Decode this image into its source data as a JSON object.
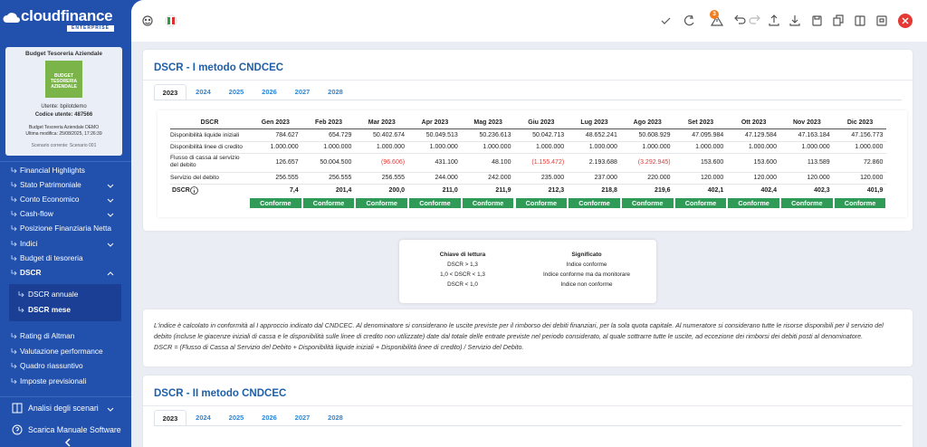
{
  "sidebar": {
    "logo": "cloudfinance",
    "logo_sub": "ENTERPRISE",
    "card": {
      "title": "Budget Tesoreria Aziendale",
      "image_text": "BUDGET TESORERIA AZIENDALE",
      "user": "Utente: bpilotdemo",
      "code": "Codice utente: 487566",
      "budget": "Budget Tesoreria Aziendale DEMO",
      "modified": "Ultima modifica: 25/08/2025, 17:26:39",
      "scenario": "Scenario corrente: Scenario 001"
    },
    "menu": [
      {
        "label": "Financial Highlights",
        "expandable": false
      },
      {
        "label": "Stato Patrimoniale",
        "expandable": true
      },
      {
        "label": "Conto Economico",
        "expandable": true
      },
      {
        "label": "Cash-flow",
        "expandable": true
      },
      {
        "label": "Posizione Finanziaria Netta",
        "expandable": false
      },
      {
        "label": "Indici",
        "expandable": true
      },
      {
        "label": "Budget di tesoreria",
        "expandable": false
      },
      {
        "label": "DSCR",
        "expandable": true,
        "expanded": true
      }
    ],
    "submenu": [
      {
        "label": "DSCR annuale",
        "active": false
      },
      {
        "label": "DSCR mese",
        "active": true
      }
    ],
    "menu_more": [
      {
        "label": "Rating di Altman"
      },
      {
        "label": "Valutazione performance"
      },
      {
        "label": "Quadro riassuntivo"
      },
      {
        "label": "Imposte previsionali"
      }
    ],
    "bottom": [
      {
        "label": "Analisi degli scenari",
        "expandable": true
      },
      {
        "label": "Scarica Manuale Software",
        "expandable": false
      }
    ]
  },
  "toolbar": {
    "notifications": "3"
  },
  "section1": {
    "title": "DSCR - I metodo CNDCEC",
    "tabs": [
      "2023",
      "2024",
      "2025",
      "2026",
      "2027",
      "2028"
    ],
    "active_tab": 0,
    "table": {
      "header": [
        "DSCR",
        "Gen 2023",
        "Feb 2023",
        "Mar 2023",
        "Apr 2023",
        "Mag 2023",
        "Giu 2023",
        "Lug 2023",
        "Ago 2023",
        "Set 2023",
        "Ott 2023",
        "Nov 2023",
        "Dic 2023"
      ],
      "rows": [
        {
          "label": "Disponibilità liquide iniziali",
          "values": [
            "784.627",
            "654.729",
            "50.402.674",
            "50.049.513",
            "50.236.613",
            "50.042.713",
            "48.652.241",
            "50.608.929",
            "47.095.984",
            "47.129.584",
            "47.163.184",
            "47.156.773"
          ]
        },
        {
          "label": "Disponibilità linee di credito",
          "values": [
            "1.000.000",
            "1.000.000",
            "1.000.000",
            "1.000.000",
            "1.000.000",
            "1.000.000",
            "1.000.000",
            "1.000.000",
            "1.000.000",
            "1.000.000",
            "1.000.000",
            "1.000.000"
          ]
        },
        {
          "label": "Flusso di cassa al servizio del debito",
          "values": [
            "126.657",
            "50.004.500",
            "(96.606)",
            "431.100",
            "48.100",
            "(1.155.472)",
            "2.193.688",
            "(3.292.945)",
            "153.600",
            "153.600",
            "113.589",
            "72.860"
          ]
        },
        {
          "label": "Servizio del debito",
          "values": [
            "256.555",
            "256.555",
            "256.555",
            "244.000",
            "242.000",
            "235.000",
            "237.000",
            "220.000",
            "120.000",
            "120.000",
            "120.000",
            "120.000"
          ]
        }
      ],
      "dscr": {
        "label": "DSCR",
        "values": [
          "7,4",
          "201,4",
          "200,0",
          "211,0",
          "211,9",
          "212,3",
          "218,8",
          "219,6",
          "402,1",
          "402,4",
          "402,3",
          "401,9"
        ]
      },
      "status": [
        "Conforme",
        "Conforme",
        "Conforme",
        "Conforme",
        "Conforme",
        "Conforme",
        "Conforme",
        "Conforme",
        "Conforme",
        "Conforme",
        "Conforme",
        "Conforme"
      ]
    }
  },
  "legend": {
    "header": [
      "Chiave di lettura",
      "Significato"
    ],
    "rows": [
      [
        "DSCR > 1,3",
        "Indice conforme"
      ],
      [
        "1,0 < DSCR < 1,3",
        "Indice conforme ma da monitorare"
      ],
      [
        "DSCR < 1,0",
        "Indice non conforme"
      ]
    ]
  },
  "note": {
    "text": "L'indice è calcolato in conformità al I approccio indicato dal CNDCEC. Al denominatore si considerano le uscite previste per il rimborso dei debiti finanziari, per la sola quota capitale. Al numeratore si considerano tutte le risorse disponibili per il servizio del debito (incluse le giacenze iniziali di cassa e le disponibilità sulle linee di credito non utilizzate) date dal totale delle entrate previste nel periodo considerato, al quale sottrarre tutte le uscite, ad eccezione dei rimborsi dei debiti posti al denominatore.",
    "formula": "DSCR = (Flusso di Cassa al Servizio del Debito + Disponibilità liquide iniziali + Disponibilità linee di credito) / Servizio del Debito."
  },
  "section2": {
    "title": "DSCR - II metodo CNDCEC",
    "tabs": [
      "2023",
      "2024",
      "2025",
      "2026",
      "2027",
      "2028"
    ],
    "active_tab": 0
  }
}
